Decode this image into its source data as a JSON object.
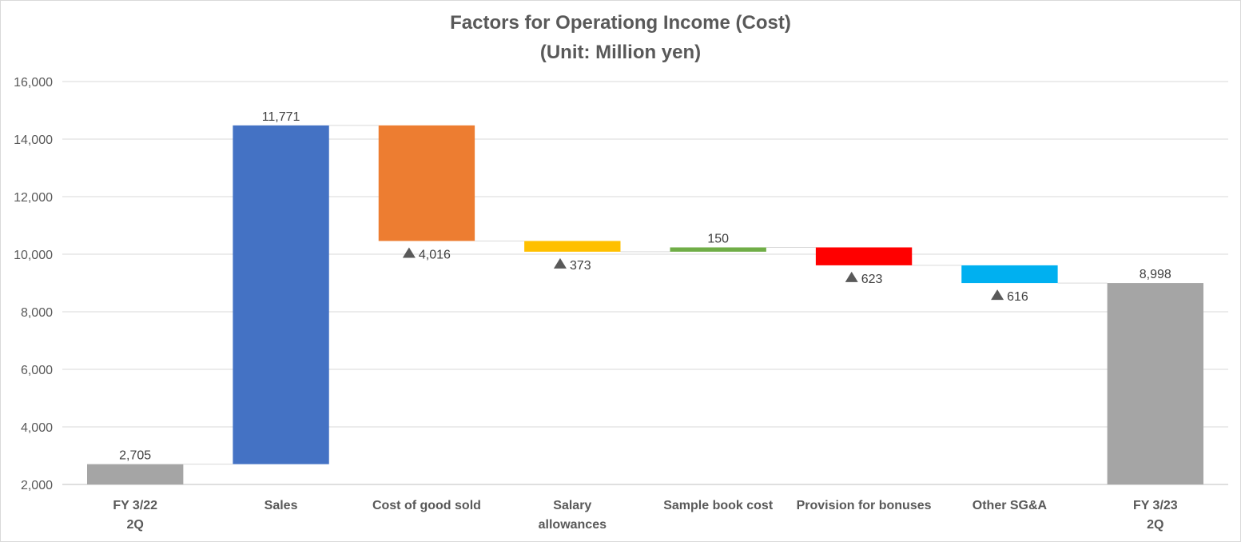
{
  "chart_data": {
    "type": "bar",
    "subtype": "waterfall",
    "title": "Factors for Operationg Income (Cost)",
    "subtitle": "(Unit: Million yen)",
    "ylim": [
      2000,
      16000
    ],
    "yticks": [
      "2,000",
      "4,000",
      "6,000",
      "8,000",
      "10,000",
      "12,000",
      "14,000",
      "16,000"
    ],
    "grid": true,
    "legend": "none",
    "categories": [
      [
        "FY 3/22",
        "2Q"
      ],
      [
        "Sales"
      ],
      [
        "Cost of good sold"
      ],
      [
        "Salary",
        "allowances"
      ],
      [
        "Sample book cost"
      ],
      [
        "Provision for bonuses"
      ],
      [
        "Other SG&A"
      ],
      [
        "FY 3/23",
        "2Q"
      ]
    ],
    "bars": [
      {
        "kind": "total",
        "start": 0,
        "end": 2705,
        "label": "2,705",
        "color": "#a5a5a5"
      },
      {
        "kind": "increase",
        "start": 2705,
        "end": 14476,
        "label": "11,771",
        "color": "#4472c4"
      },
      {
        "kind": "decrease",
        "start": 14476,
        "end": 10460,
        "label": "4,016",
        "color": "#ed7d31"
      },
      {
        "kind": "decrease",
        "start": 10460,
        "end": 10087,
        "label": "373",
        "color": "#ffc000"
      },
      {
        "kind": "increase",
        "start": 10087,
        "end": 10237,
        "label": "150",
        "color": "#70ad47"
      },
      {
        "kind": "decrease",
        "start": 10237,
        "end": 9614,
        "label": "623",
        "color": "#ff0000"
      },
      {
        "kind": "decrease",
        "start": 9614,
        "end": 8998,
        "label": "616",
        "color": "#00b0f0"
      },
      {
        "kind": "total",
        "start": 0,
        "end": 8998,
        "label": "8,998",
        "color": "#a5a5a5"
      }
    ],
    "decrease_marker": "▲"
  }
}
